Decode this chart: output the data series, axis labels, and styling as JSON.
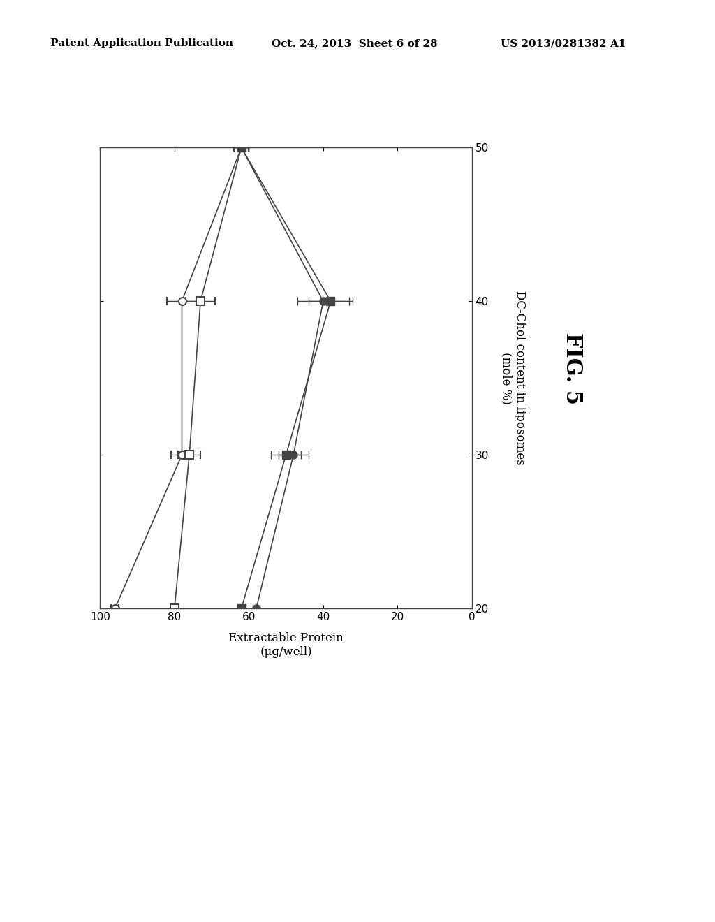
{
  "title": "FIG. 5",
  "xlabel": "Extractable Protein\n(μg/well)",
  "ylabel": "DC-Chol content in liposomes\n(mole %)",
  "xlim_reversed": [
    100,
    0
  ],
  "ylim": [
    20,
    50
  ],
  "yticks": [
    20,
    30,
    40,
    50
  ],
  "xticks": [
    0,
    20,
    40,
    60,
    80,
    100
  ],
  "series": [
    {
      "name": "open_circle",
      "x": [
        96,
        78,
        78,
        62
      ],
      "y": [
        20,
        30,
        40,
        50
      ],
      "xerr": [
        1,
        3,
        4,
        2
      ],
      "marker": "o",
      "filled": false,
      "color": "#444444",
      "linewidth": 1.2
    },
    {
      "name": "open_square",
      "x": [
        80,
        76,
        73,
        62
      ],
      "y": [
        20,
        30,
        40,
        50
      ],
      "xerr": [
        1,
        3,
        4,
        2
      ],
      "marker": "s",
      "filled": false,
      "color": "#444444",
      "linewidth": 1.2
    },
    {
      "name": "filled_square",
      "x": [
        62,
        50,
        38,
        62
      ],
      "y": [
        20,
        30,
        40,
        50
      ],
      "xerr": [
        1,
        4,
        6,
        2
      ],
      "marker": "s",
      "filled": true,
      "color": "#444444",
      "linewidth": 1.2
    },
    {
      "name": "filled_circle",
      "x": [
        58,
        48,
        40,
        62
      ],
      "y": [
        20,
        30,
        40,
        50
      ],
      "xerr": [
        1,
        4,
        7,
        2
      ],
      "marker": "o",
      "filled": true,
      "color": "#444444",
      "linewidth": 1.2
    }
  ],
  "header_left": "Patent Application Publication",
  "header_center": "Oct. 24, 2013  Sheet 6 of 28",
  "header_right": "US 2013/0281382 A1",
  "background_color": "#ffffff"
}
